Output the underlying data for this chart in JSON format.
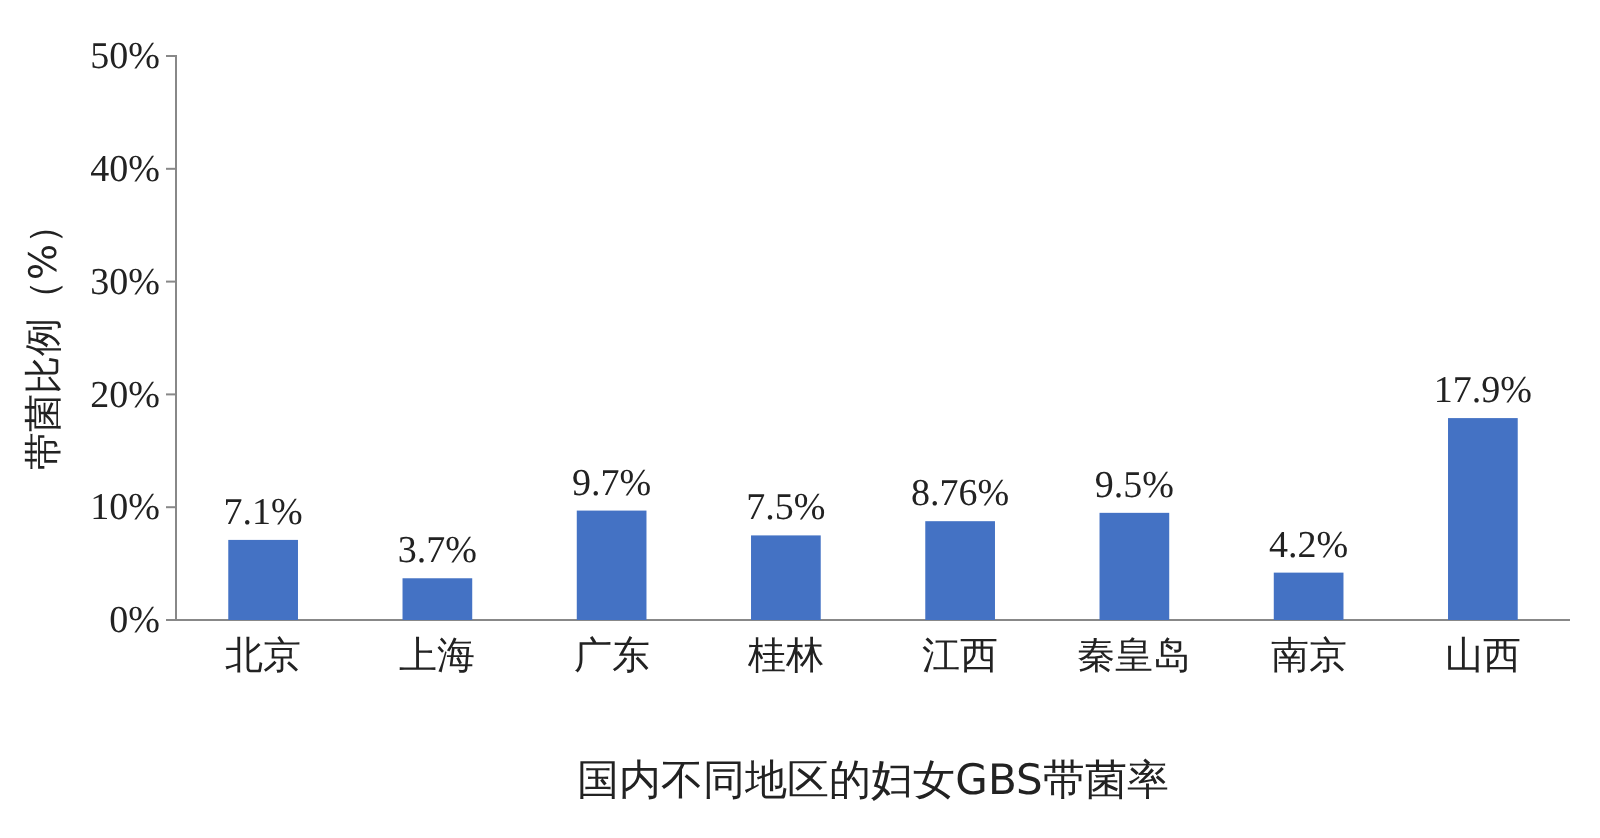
{
  "chart_data": {
    "type": "bar",
    "xlabel": "国内不同地区的妇女GBS带菌率",
    "ylabel": "带菌比例（%）",
    "categories": [
      "北京",
      "上海",
      "广东",
      "桂林",
      "江西",
      "秦皇岛",
      "南京",
      "山西"
    ],
    "values": [
      7.1,
      3.7,
      9.7,
      7.5,
      8.76,
      9.5,
      4.2,
      17.9
    ],
    "value_labels": [
      "7.1%",
      "3.7%",
      "9.7%",
      "7.5%",
      "8.76%",
      "9.5%",
      "4.2%",
      "17.9%"
    ],
    "color": "#4472c4",
    "ylim": [
      0,
      50
    ],
    "yticks": [
      {
        "value": 0,
        "label": "0%"
      },
      {
        "value": 10,
        "label": "10%"
      },
      {
        "value": 20,
        "label": "20%"
      },
      {
        "value": 30,
        "label": "30%"
      },
      {
        "value": 40,
        "label": "40%"
      },
      {
        "value": 50,
        "label": "50%"
      }
    ],
    "grid": false
  }
}
